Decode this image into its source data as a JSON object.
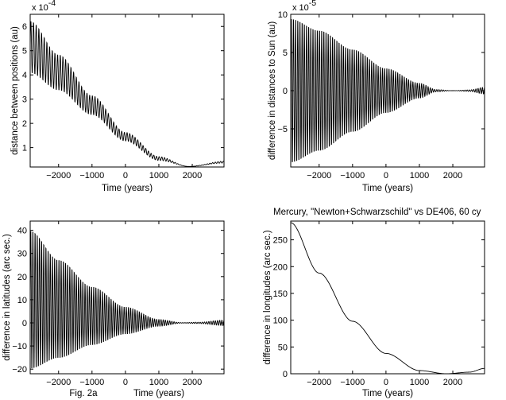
{
  "figure": {
    "caption": "Fig. 2a"
  },
  "chart_data": [
    {
      "id": "p1",
      "type": "line",
      "title": "",
      "xlabel": "Time (years)",
      "ylabel": "distance between positions (au)",
      "y_multiplier": "x 10",
      "y_exponent": "-4",
      "xlim": [
        -2850,
        2950
      ],
      "ylim": [
        0.2,
        6.5
      ],
      "xticks": [
        -2000,
        -1000,
        0,
        1000,
        2000
      ],
      "xtick_labels": [
        "−2000",
        "−1000",
        "0",
        "1000",
        "2000"
      ],
      "yticks": [
        1,
        2,
        3,
        4,
        5,
        6
      ],
      "ytick_labels": [
        "1",
        "2",
        "3",
        "4",
        "5",
        "6"
      ],
      "grid": false,
      "signal": {
        "kind": "oscillating_envelope",
        "center": [
          [
            -2850,
            5.15
          ],
          [
            -2000,
            4.1
          ],
          [
            -1000,
            2.75
          ],
          [
            0,
            1.45
          ],
          [
            1000,
            0.55
          ],
          [
            1900,
            0.22
          ],
          [
            2950,
            0.4
          ]
        ],
        "half_amplitude": [
          [
            -2850,
            1.1
          ],
          [
            -2000,
            0.75
          ],
          [
            -1000,
            0.4
          ],
          [
            0,
            0.18
          ],
          [
            1000,
            0.08
          ],
          [
            1800,
            0.0
          ],
          [
            2300,
            0.01
          ],
          [
            2950,
            0.04
          ]
        ],
        "period_years": 80
      }
    },
    {
      "id": "p2",
      "type": "line",
      "title": "",
      "xlabel": "Time (years)",
      "ylabel": "difference in distances to Sun (au)",
      "y_multiplier": "x 10",
      "y_exponent": "-5",
      "xlim": [
        -2850,
        2950
      ],
      "ylim": [
        -10,
        10
      ],
      "xticks": [
        -2000,
        -1000,
        0,
        1000,
        2000
      ],
      "xtick_labels": [
        "−2000",
        "−1000",
        "0",
        "1000",
        "2000"
      ],
      "yticks": [
        -5,
        0,
        5,
        10
      ],
      "ytick_labels": [
        "−5",
        "0",
        "5",
        "10"
      ],
      "grid": false,
      "signal": {
        "kind": "oscillating_envelope",
        "center": [
          [
            -2850,
            0
          ],
          [
            2950,
            0
          ]
        ],
        "half_amplitude": [
          [
            -2850,
            9.8
          ],
          [
            -2000,
            8.2
          ],
          [
            -1000,
            5.6
          ],
          [
            0,
            3.0
          ],
          [
            1000,
            1.0
          ],
          [
            1500,
            0.15
          ],
          [
            2000,
            0.0
          ],
          [
            2500,
            0.1
          ],
          [
            2950,
            0.45
          ]
        ],
        "period_years": 65
      }
    },
    {
      "id": "p3",
      "type": "line",
      "title": "",
      "xlabel": "Time (years)",
      "ylabel": "difference in latitudes (arc sec.)",
      "xlim": [
        -2850,
        2950
      ],
      "ylim": [
        -22,
        44
      ],
      "xticks": [
        -2000,
        -1000,
        0,
        1000,
        2000
      ],
      "xtick_labels": [
        "−2000",
        "−1000",
        "0",
        "1000",
        "2000"
      ],
      "yticks": [
        -20,
        -10,
        0,
        10,
        20,
        30,
        40
      ],
      "ytick_labels": [
        "−20",
        "−10",
        "0",
        "10",
        "20",
        "30",
        "40"
      ],
      "grid": false,
      "signal": {
        "kind": "oscillating_envelope",
        "center": [
          [
            -2850,
            10
          ],
          [
            -2000,
            6
          ],
          [
            -1000,
            3
          ],
          [
            0,
            1
          ],
          [
            1000,
            0
          ],
          [
            2950,
            0
          ]
        ],
        "half_amplitude": [
          [
            -2850,
            31
          ],
          [
            -2000,
            22
          ],
          [
            -1000,
            13
          ],
          [
            0,
            6
          ],
          [
            1000,
            1.5
          ],
          [
            1700,
            0.1
          ],
          [
            2200,
            0.3
          ],
          [
            2950,
            1.2
          ]
        ],
        "period_years": 65
      }
    },
    {
      "id": "p4",
      "type": "line",
      "title": "Mercury, \"Newton+Schwarzschild\" vs DE406, 60 cy",
      "xlabel": "Time (years)",
      "ylabel": "difference in longitudes (arc sec.)",
      "xlim": [
        -2850,
        2950
      ],
      "ylim": [
        0,
        285
      ],
      "xticks": [
        -2000,
        -1000,
        0,
        1000,
        2000
      ],
      "xtick_labels": [
        "−2000",
        "−1000",
        "0",
        "1000",
        "2000"
      ],
      "yticks": [
        0,
        50,
        100,
        150,
        200,
        250
      ],
      "ytick_labels": [
        "0",
        "50",
        "100",
        "150",
        "200",
        "250"
      ],
      "grid": false,
      "signal": {
        "kind": "smooth",
        "points": [
          [
            -2850,
            282
          ],
          [
            -2000,
            188
          ],
          [
            -1000,
            98
          ],
          [
            0,
            38
          ],
          [
            1000,
            6
          ],
          [
            1800,
            0
          ],
          [
            2500,
            3
          ],
          [
            2950,
            10
          ]
        ]
      }
    }
  ]
}
